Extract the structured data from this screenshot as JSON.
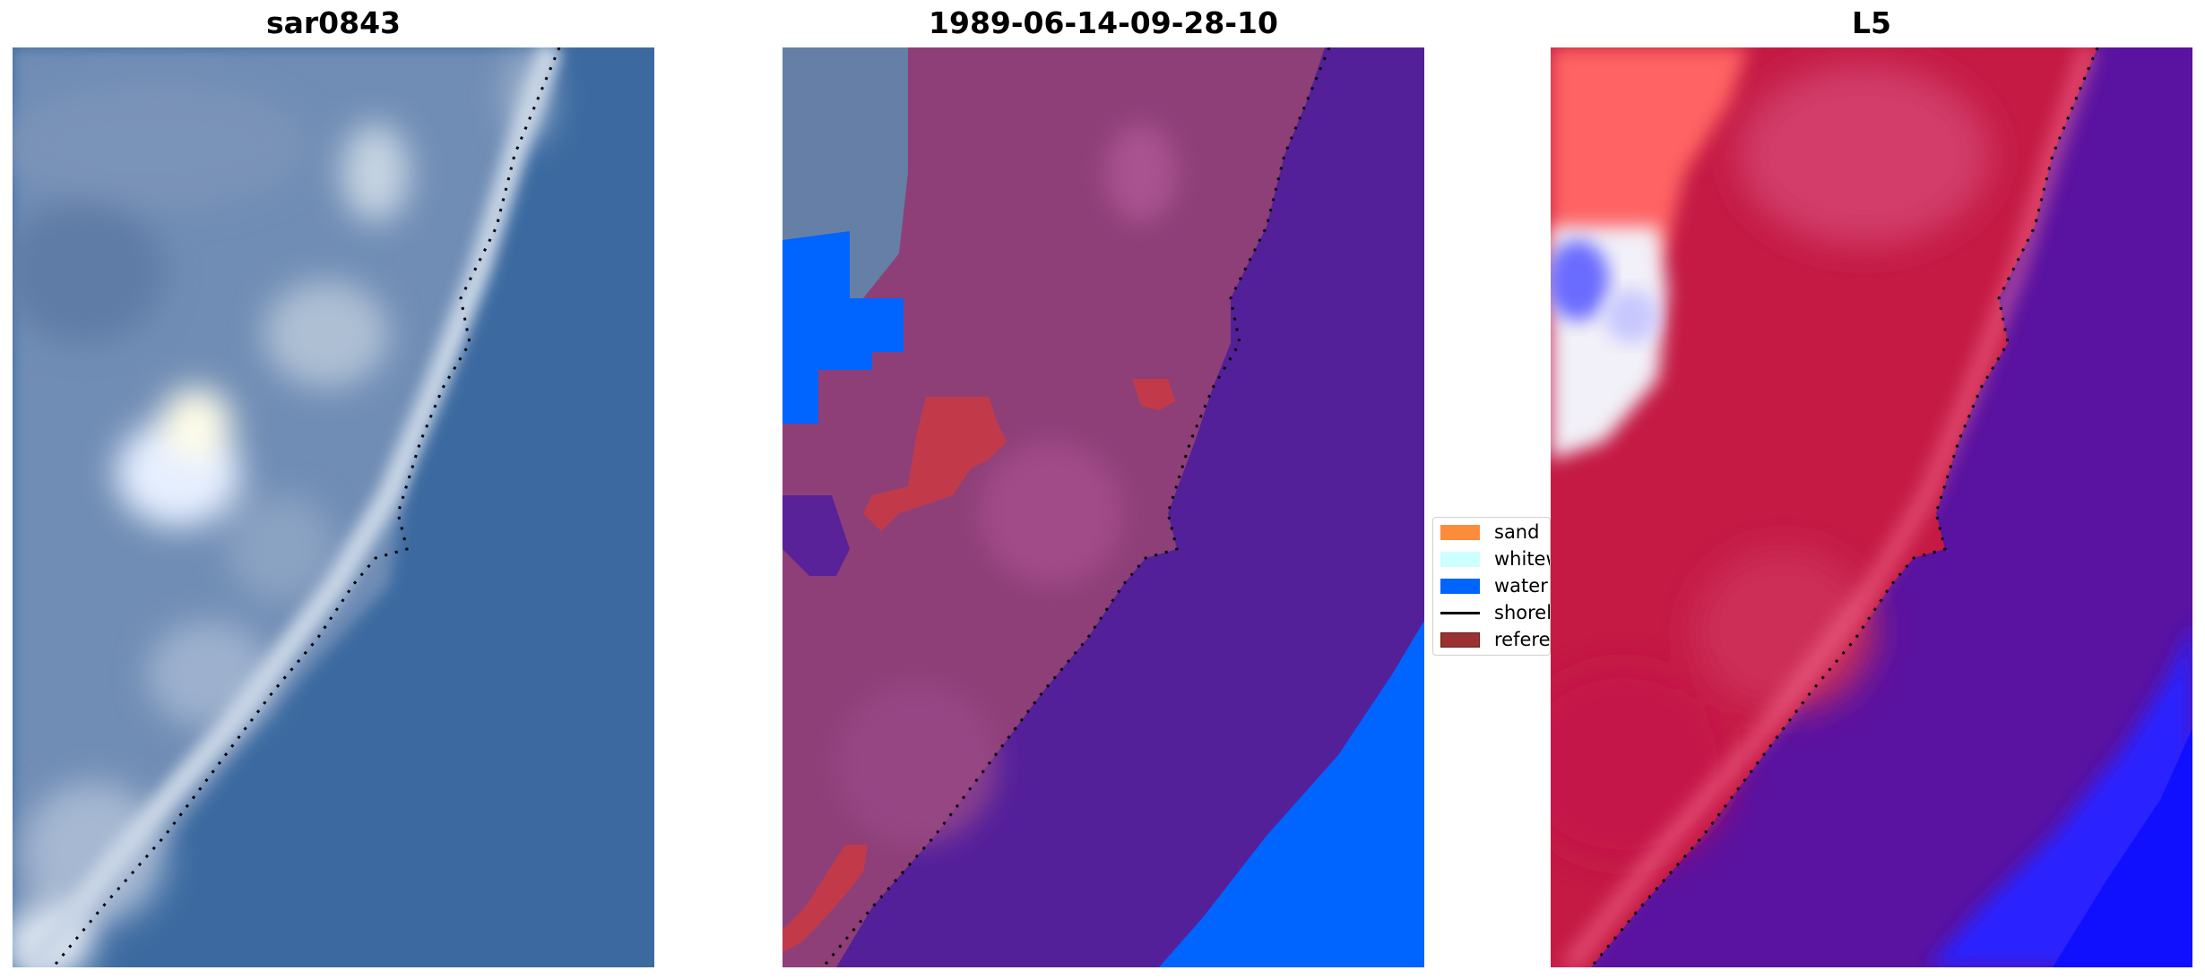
{
  "panels": [
    {
      "title": "sar0843"
    },
    {
      "title": "1989-06-14-09-28-10"
    },
    {
      "title": "L5"
    }
  ],
  "legend": {
    "items": [
      {
        "label": "sand",
        "color": "#fb8c3c",
        "kind": "patch"
      },
      {
        "label": "whitewater",
        "color": "#ccffff",
        "kind": "patch"
      },
      {
        "label": "water",
        "color": "#0064ff",
        "kind": "patch"
      },
      {
        "label": "shoreline",
        "color": "#000000",
        "kind": "line"
      },
      {
        "label": "reference",
        "color": "#9b3232",
        "kind": "patch"
      }
    ]
  },
  "colors": {
    "ocean_blue": "#3b6aa0",
    "land_gray_blue": "#6f8db5",
    "whitewater_blob": "#f4f8ff",
    "classified_land_magenta": "#8e3f78",
    "classified_water_purple": "#54209a",
    "classified_water_bright": "#0064ff",
    "classified_reference_red": "#c23a4a",
    "index_land_crimson": "#c41a44",
    "index_land_pink": "#ff6e6e",
    "index_water_purple": "#5a12a0",
    "index_water_blue": "#1818ff",
    "shoreline_dots": "#000000"
  }
}
